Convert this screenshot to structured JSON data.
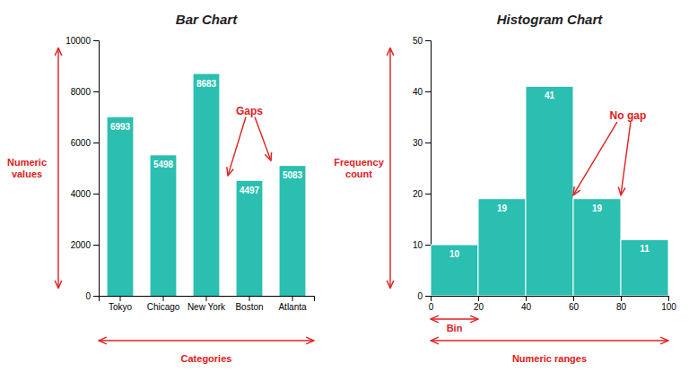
{
  "chart_data": [
    {
      "type": "bar",
      "title": "Bar Chart",
      "categories": [
        "Tokyo",
        "Chicago",
        "New York",
        "Boston",
        "Atlanta"
      ],
      "values": [
        6993,
        5498,
        8683,
        4497,
        5083
      ],
      "color": "#2abfb0",
      "ylim": [
        0,
        10000
      ],
      "yticks": [
        0,
        2000,
        4000,
        6000,
        8000,
        10000
      ],
      "ylabel": "Numeric\nvalues",
      "xlabel": "Categories",
      "data_labels": true,
      "grid": false,
      "annotations": [
        {
          "text": "Gaps",
          "color": "#e02020"
        }
      ]
    },
    {
      "type": "histogram",
      "title": "Histogram Chart",
      "bins": [
        0,
        20,
        40,
        60,
        80,
        100
      ],
      "values": [
        10,
        19,
        41,
        19,
        11
      ],
      "color": "#2abfb0",
      "xlim": [
        0,
        100
      ],
      "xticks": [
        0,
        20,
        40,
        60,
        80,
        100
      ],
      "ylim": [
        0,
        50
      ],
      "yticks": [
        0,
        10,
        20,
        30,
        40,
        50
      ],
      "ylabel": "Frequency\ncount",
      "xlabel": "Numeric ranges",
      "data_labels": true,
      "grid": false,
      "annotations": [
        {
          "text": "Bin",
          "color": "#e02020"
        },
        {
          "text": "No gap",
          "color": "#e02020"
        }
      ]
    }
  ]
}
